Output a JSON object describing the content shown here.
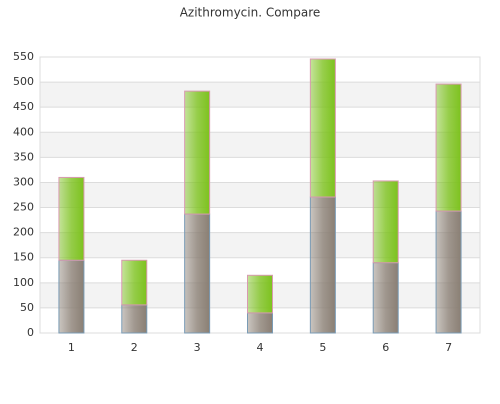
{
  "chart_data": {
    "type": "stacked_bar",
    "title": "Azithromycin. Compare",
    "categories": [
      "1",
      "2",
      "3",
      "4",
      "5",
      "6",
      "7"
    ],
    "series": [
      {
        "color": "#8a7f74",
        "values": [
          145,
          56,
          237,
          40,
          271,
          140,
          243
        ]
      },
      {
        "color": "#7dc21e",
        "values": [
          165,
          89,
          245,
          75,
          275,
          163,
          253
        ]
      }
    ],
    "ylim": [
      0,
      550
    ],
    "yticks": [
      0,
      50,
      100,
      150,
      200,
      250,
      300,
      350,
      400,
      450,
      500,
      550
    ],
    "grid": true
  }
}
